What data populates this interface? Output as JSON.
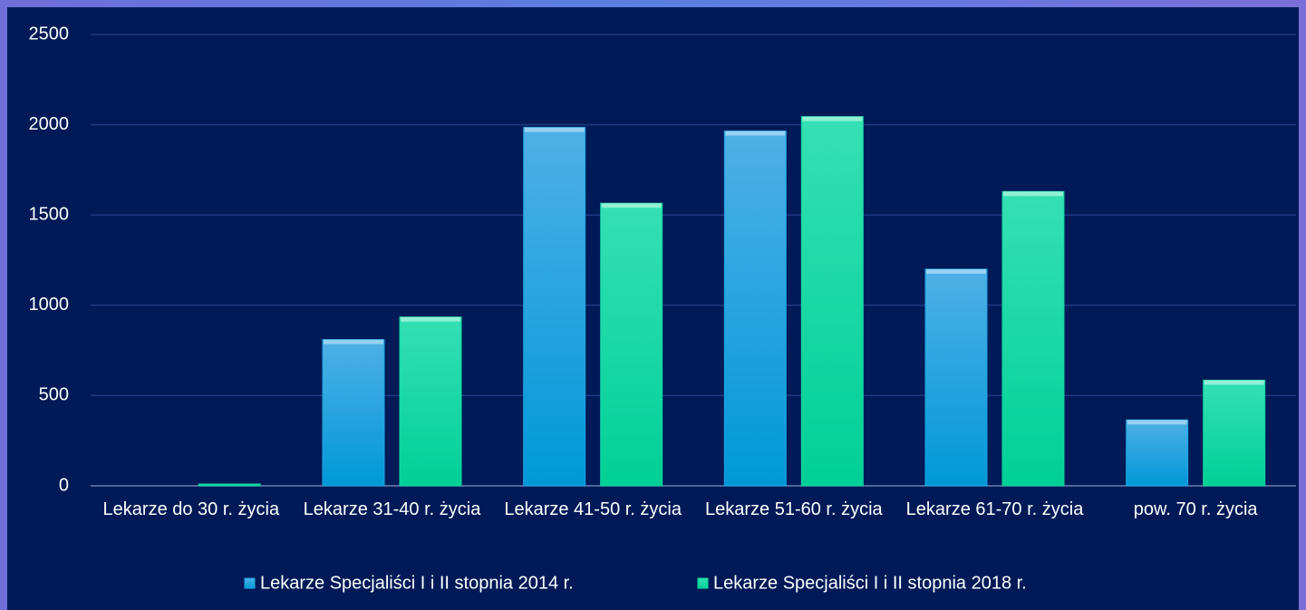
{
  "chart_data": {
    "type": "bar",
    "categories": [
      "Lekarze do 30 r. życia",
      "Lekarze 31-40 r. życia",
      "Lekarze 41-50 r. życia",
      "Lekarze 51-60 r. życia",
      "Lekarze 61-70 r. życia",
      "pow. 70 r. życia"
    ],
    "series": [
      {
        "name": "Lekarze Specjaliści I i II stopnia 2014 r.",
        "color": "#1aa6e0",
        "values": [
          0,
          810,
          1985,
          1965,
          1200,
          365
        ]
      },
      {
        "name": "Lekarze Specjaliści I i II stopnia 2018 r.",
        "color": "#10d8a0",
        "values": [
          10,
          935,
          1565,
          2045,
          1630,
          585
        ]
      }
    ],
    "ylim": [
      0,
      2500
    ],
    "yticks": [
      0,
      500,
      1000,
      1500,
      2000,
      2500
    ],
    "grid": true,
    "legend": "bottom"
  }
}
